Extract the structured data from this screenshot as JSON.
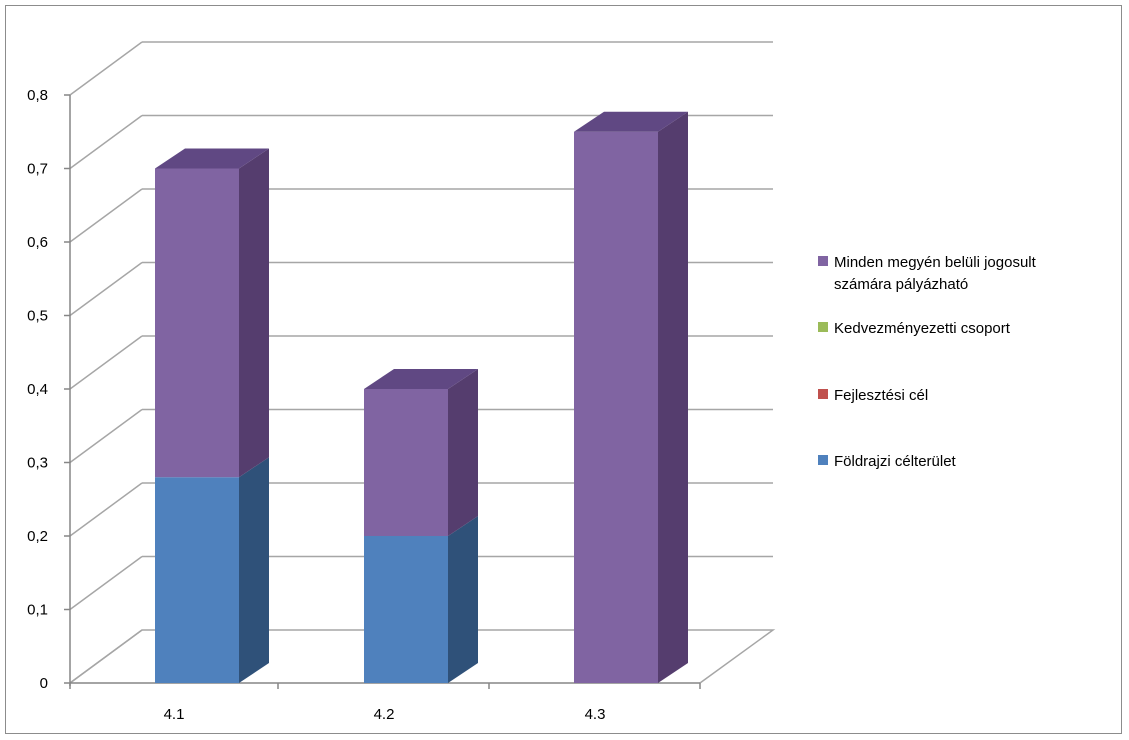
{
  "chart_data": {
    "type": "bar",
    "stacked": true,
    "three_d": true,
    "categories": [
      "4.1",
      "4.2",
      "4.3"
    ],
    "series": [
      {
        "name": "Földrajzi célterület",
        "values": [
          0.28,
          0.2,
          0
        ],
        "color": "#4f81bd",
        "side_color": "#2f5179",
        "top_color": "#3f6aa0"
      },
      {
        "name": "Fejlesztési cél",
        "values": [
          0,
          0,
          0
        ],
        "color": "#c0504d",
        "side_color": "#8a3533",
        "top_color": "#a3403d"
      },
      {
        "name": "Kedvezményezetti csoport",
        "values": [
          0,
          0,
          0
        ],
        "color": "#9bbb59",
        "side_color": "#6f8a3d",
        "top_color": "#86a44a"
      },
      {
        "name": "Minden megyén belüli jogosult számára pályázható",
        "values": [
          0.42,
          0.2,
          0.75
        ],
        "color": "#8064a2",
        "side_color": "#553d6e",
        "top_color": "#604883"
      }
    ],
    "y_ticks": [
      "0",
      "0,1",
      "0,2",
      "0,3",
      "0,4",
      "0,5",
      "0,6",
      "0,7",
      "0,8"
    ],
    "ylim": [
      0,
      0.8
    ],
    "ygrid": true,
    "legend_position": "right",
    "title": "",
    "xlabel": "",
    "ylabel": ""
  }
}
